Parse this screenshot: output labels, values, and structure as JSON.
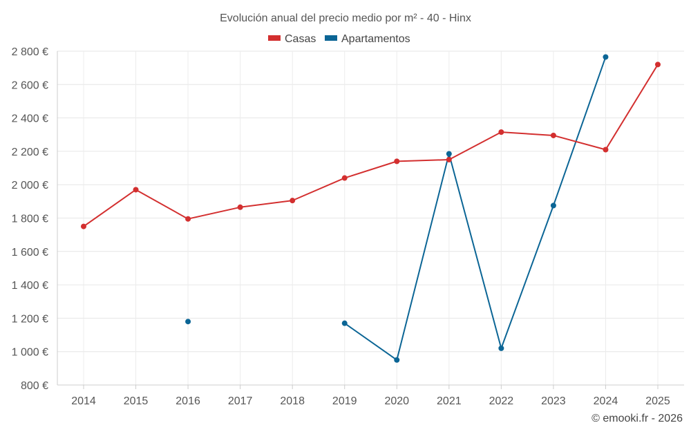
{
  "chart_data": {
    "type": "line",
    "title": "Evolución anual del precio medio por m² - 40 - Hinx",
    "categories": [
      "2014",
      "2015",
      "2016",
      "2017",
      "2018",
      "2019",
      "2020",
      "2021",
      "2022",
      "2023",
      "2024",
      "2025"
    ],
    "y_tick_labels": [
      "800 €",
      "1 000 €",
      "1 200 €",
      "1 400 €",
      "1 600 €",
      "1 800 €",
      "2 000 €",
      "2 200 €",
      "2 400 €",
      "2 600 €",
      "2 800 €"
    ],
    "y_tick_values": [
      800,
      1000,
      1200,
      1400,
      1600,
      1800,
      2000,
      2200,
      2400,
      2600,
      2800
    ],
    "ylim": [
      800,
      2800
    ],
    "grid": true,
    "legend_position": "top-center",
    "series": [
      {
        "name": "Casas",
        "color": "#d32f2f",
        "values": [
          1750,
          1970,
          1795,
          1865,
          1905,
          2040,
          2140,
          2150,
          2315,
          2295,
          2210,
          2720
        ]
      },
      {
        "name": "Apartamentos",
        "color": "#0b6595",
        "values": [
          null,
          null,
          1180,
          null,
          null,
          1170,
          950,
          2185,
          1020,
          1875,
          2765,
          null
        ]
      }
    ],
    "credit": "© emooki.fr - 2026"
  }
}
